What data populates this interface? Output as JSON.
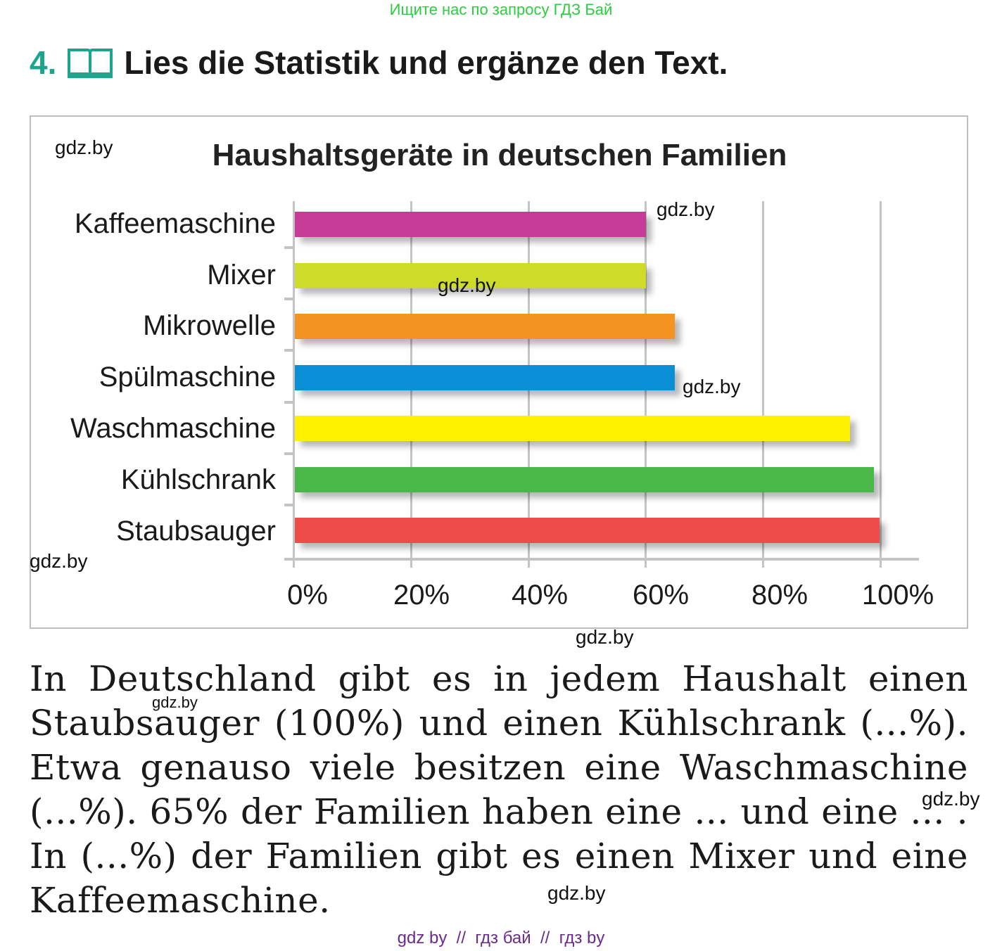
{
  "banner": {
    "text": "Ищите нас по запросу ГДЗ Бай",
    "color": "#2ecc40"
  },
  "task": {
    "number": "4.",
    "icon": "book-icon",
    "title": "Lies die Statistik und ergänze den Text.",
    "accent": "#1aa58c"
  },
  "chart_data": {
    "type": "bar",
    "orientation": "horizontal",
    "title": "Haushaltsgeräte in deutschen Familien",
    "categories": [
      "Kaffeemaschine",
      "Mixer",
      "Mikrowelle",
      "Spülmaschine",
      "Waschmaschine",
      "Kühlschrank",
      "Staubsauger"
    ],
    "values": [
      60,
      60,
      65,
      65,
      95,
      99,
      100
    ],
    "colors": [
      "#c63b96",
      "#cddc29",
      "#f39322",
      "#0a8fd6",
      "#fff200",
      "#4ab749",
      "#ee4c48"
    ],
    "xlabel": "",
    "ylabel": "",
    "xlim": [
      0,
      100
    ],
    "x_ticks": [
      "0%",
      "20%",
      "40%",
      "60%",
      "80%",
      "100%"
    ],
    "grid": true,
    "legend": null
  },
  "watermarks": [
    "gdz.by",
    "gdz.by",
    "gdz.by",
    "gdz.by",
    "gdz.by",
    "gdz.by",
    "gdz.by",
    "gdz.by",
    "gdz.by"
  ],
  "body_text": "In Deutschland gibt es in jedem Haushalt einen Staubsauger (100%) und einen Kühlschrank (...%). Etwa genauso viele besitzen eine Waschmaschine (...%). 65% der Familien haben eine ... und eine ... . In (...%) der Familien gibt es einen Mixer und eine Kaffeemaschine.",
  "footer": {
    "text": "gdz by  //  гдз бай  //  гдз by"
  }
}
